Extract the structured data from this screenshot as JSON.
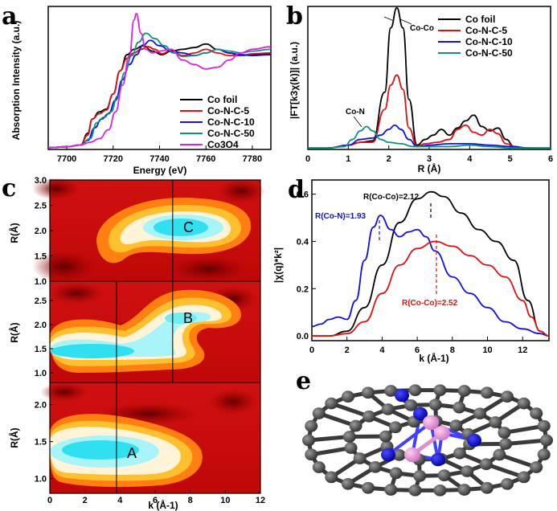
{
  "panel_labels": {
    "a": "a",
    "b": "b",
    "c": "c",
    "d": "d",
    "e": "e"
  },
  "chart_data": [
    {
      "id": "a",
      "type": "line",
      "title": "",
      "xlabel": "Energy (eV)",
      "ylabel": "Absorption Intensity (a.u.)",
      "xlim": [
        7692,
        7788
      ],
      "ylim": [
        0,
        1.6
      ],
      "xticks": [
        "7700",
        "7720",
        "7740",
        "7760",
        "7780"
      ],
      "legend": "lower-right",
      "series": [
        {
          "name": "Co foil",
          "color": "#000000",
          "x": [
            7692,
            7700,
            7706,
            7709,
            7711,
            7714,
            7717,
            7720,
            7723,
            7726,
            7729,
            7733,
            7737,
            7741,
            7745,
            7750,
            7755,
            7760,
            7765,
            7770,
            7775,
            7780,
            7788
          ],
          "values": [
            0.02,
            0.03,
            0.05,
            0.18,
            0.34,
            0.42,
            0.45,
            0.62,
            0.88,
            1.06,
            1.12,
            1.16,
            1.1,
            1.06,
            1.1,
            1.12,
            1.14,
            1.18,
            1.12,
            1.08,
            1.05,
            1.06,
            1.07
          ]
        },
        {
          "name": "Co-N-C-5",
          "color": "#e01010",
          "x": [
            7692,
            7700,
            7706,
            7709,
            7711,
            7714,
            7717,
            7720,
            7723,
            7726,
            7729,
            7732,
            7735,
            7738,
            7741,
            7745,
            7750,
            7755,
            7760,
            7765,
            7770,
            7775,
            7780,
            7788
          ],
          "values": [
            0.02,
            0.03,
            0.05,
            0.16,
            0.34,
            0.4,
            0.44,
            0.62,
            0.88,
            1.02,
            1.08,
            1.12,
            1.15,
            1.12,
            1.07,
            1.11,
            1.05,
            1.08,
            1.12,
            1.08,
            1.05,
            1.05,
            1.07,
            1.08
          ]
        },
        {
          "name": "Co-N-C-10",
          "color": "#1010e0",
          "x": [
            7692,
            7700,
            7706,
            7709,
            7712,
            7715,
            7718,
            7721,
            7724,
            7727,
            7730,
            7733,
            7736,
            7740,
            7745,
            7750,
            7755,
            7760,
            7765,
            7770,
            7775,
            7780,
            7788
          ],
          "values": [
            0.02,
            0.03,
            0.05,
            0.1,
            0.24,
            0.34,
            0.4,
            0.55,
            0.78,
            0.95,
            1.06,
            1.17,
            1.22,
            1.16,
            1.1,
            1.08,
            1.05,
            1.08,
            1.12,
            1.08,
            1.06,
            1.05,
            1.06
          ]
        },
        {
          "name": "Co-N-C-50",
          "color": "#109080",
          "x": [
            7692,
            7700,
            7706,
            7710,
            7713,
            7716,
            7719,
            7722,
            7725,
            7728,
            7731,
            7734,
            7738,
            7742,
            7746,
            7750,
            7755,
            7760,
            7765,
            7770,
            7775,
            7780,
            7788
          ],
          "values": [
            0.02,
            0.03,
            0.05,
            0.12,
            0.3,
            0.36,
            0.42,
            0.6,
            0.86,
            1.05,
            1.2,
            1.3,
            1.24,
            1.16,
            1.08,
            1.04,
            1.05,
            1.08,
            1.12,
            1.1,
            1.08,
            1.1,
            1.12
          ]
        },
        {
          "name": "Co3O4",
          "color": "#e020e0",
          "x": [
            7692,
            7700,
            7706,
            7710,
            7714,
            7718,
            7721,
            7724,
            7727,
            7729,
            7730,
            7732,
            7734,
            7737,
            7740,
            7745,
            7750,
            7755,
            7760,
            7765,
            7770,
            7775,
            7780,
            7788
          ],
          "values": [
            0.02,
            0.03,
            0.05,
            0.08,
            0.12,
            0.22,
            0.42,
            0.72,
            1.05,
            1.45,
            1.52,
            1.3,
            1.12,
            1.08,
            1.1,
            1.12,
            1.0,
            0.95,
            0.9,
            0.92,
            1.0,
            1.08,
            1.12,
            1.15
          ]
        }
      ],
      "legend_entries": [
        "Co foil",
        "Co-N-C-5",
        "Co-N-C-10",
        "Co-N-C-50",
        "Co3O4"
      ]
    },
    {
      "id": "b",
      "type": "line",
      "xlabel": "R (Å)",
      "ylabel": "|FT[k3χ(k)]| (a.u.)",
      "xlim": [
        0,
        6
      ],
      "ylim": [
        0,
        1.0
      ],
      "xticks": [
        "0",
        "1",
        "2",
        "3",
        "4",
        "5",
        "6"
      ],
      "annotations": [
        "Co-Co",
        "Co-N"
      ],
      "legend": "top-right",
      "series": [
        {
          "name": "Co foil",
          "color": "#000000",
          "x": [
            0,
            0.5,
            1.0,
            1.3,
            1.6,
            1.9,
            2.05,
            2.2,
            2.35,
            2.5,
            2.7,
            2.9,
            3.1,
            3.3,
            3.5,
            3.7,
            3.9,
            4.1,
            4.3,
            4.5,
            4.7,
            4.9,
            5.1,
            5.4,
            5.8,
            6.0
          ],
          "values": [
            0.01,
            0.01,
            0.03,
            0.05,
            0.06,
            0.4,
            0.85,
            0.99,
            0.85,
            0.35,
            0.03,
            0.07,
            0.1,
            0.14,
            0.1,
            0.15,
            0.2,
            0.24,
            0.16,
            0.13,
            0.15,
            0.07,
            0.02,
            0.01,
            0.01,
            0.01
          ]
        },
        {
          "name": "Co-N-C-5",
          "color": "#e01010",
          "x": [
            0,
            0.5,
            1.0,
            1.3,
            1.6,
            1.9,
            2.05,
            2.2,
            2.35,
            2.5,
            2.7,
            2.9,
            3.2,
            3.5,
            3.7,
            3.9,
            4.1,
            4.3,
            4.5,
            4.7,
            4.9,
            5.2,
            5.6,
            6.0
          ],
          "values": [
            0.01,
            0.01,
            0.03,
            0.05,
            0.05,
            0.28,
            0.45,
            0.52,
            0.42,
            0.15,
            0.02,
            0.04,
            0.05,
            0.07,
            0.14,
            0.17,
            0.12,
            0.1,
            0.14,
            0.11,
            0.04,
            0.01,
            0.01,
            0.01
          ]
        },
        {
          "name": "Co-N-C-10",
          "color": "#1010e0",
          "x": [
            0,
            0.5,
            1.0,
            1.3,
            1.6,
            1.8,
            2.0,
            2.15,
            2.3,
            2.5,
            2.7,
            3.0,
            3.5,
            4.0,
            4.5,
            5.0,
            5.5,
            6.0
          ],
          "values": [
            0.01,
            0.01,
            0.03,
            0.07,
            0.08,
            0.1,
            0.14,
            0.17,
            0.14,
            0.07,
            0.02,
            0.03,
            0.04,
            0.04,
            0.03,
            0.02,
            0.01,
            0.01
          ]
        },
        {
          "name": "Co-N-C-50",
          "color": "#109080",
          "x": [
            0,
            0.5,
            0.9,
            1.1,
            1.3,
            1.45,
            1.6,
            1.8,
            2.0,
            2.3,
            2.6,
            3.0,
            3.5,
            4.0,
            4.5,
            5.0,
            6.0
          ],
          "values": [
            0.01,
            0.01,
            0.02,
            0.07,
            0.13,
            0.16,
            0.13,
            0.07,
            0.05,
            0.04,
            0.02,
            0.02,
            0.02,
            0.03,
            0.02,
            0.01,
            0.01
          ]
        }
      ],
      "legend_entries": [
        "Co foil",
        "Co-N-C-5",
        "Co-N-C-10",
        "Co-N-C-50"
      ]
    },
    {
      "id": "c",
      "type": "heatmap",
      "xlabel": "k (Å-1)",
      "ylabel": "R(Å)",
      "xlim": [
        0,
        12
      ],
      "xticks": [
        "0",
        "2",
        "4",
        "6",
        "8",
        "10",
        "12"
      ],
      "subpanels": [
        {
          "label": "C",
          "ylim": [
            1.0,
            3.0
          ],
          "yticks": [
            "1.0",
            "1.5",
            "2.0",
            "2.5",
            "3.0"
          ],
          "hotspot_k": 7.0,
          "hotspot_R": 2.2,
          "marker_k": [
            7.0
          ]
        },
        {
          "label": "B",
          "ylim": [
            0.8,
            2.9
          ],
          "yticks": [
            "1.0",
            "1.5",
            "2.0",
            "2.5"
          ],
          "hotspot_k": 7.0,
          "hotspot_R": 2.1,
          "marker_k": [
            3.8,
            7.0
          ]
        },
        {
          "label": "A",
          "ylim": [
            0.8,
            2.3
          ],
          "yticks": [
            "1.0",
            "1.5",
            "2.0"
          ],
          "hotspot_k": 3.8,
          "hotspot_R": 1.4,
          "marker_k": [
            3.8
          ]
        }
      ]
    },
    {
      "id": "d",
      "type": "line",
      "xlabel": "k (Å-1)",
      "ylabel": "|χ(q)*k²|",
      "xlim": [
        0,
        13.5
      ],
      "ylim": [
        -0.02,
        0.66
      ],
      "xticks": [
        "0",
        "2",
        "4",
        "6",
        "8",
        "10",
        "12"
      ],
      "yticks": [
        "0.0",
        "0.2",
        "0.4",
        "0.6"
      ],
      "annotations": [
        "R(Co-Co)=2.12",
        "R(Co-N)=1.93",
        "R(Co-Co)=2.52"
      ],
      "series": [
        {
          "name": "Co-Co 2.12",
          "color": "#000000",
          "x": [
            0,
            1,
            2,
            3,
            4,
            5,
            6,
            6.8,
            7.5,
            8.5,
            9.5,
            10.5,
            11.5,
            12.3,
            13,
            13.5
          ],
          "values": [
            0.0,
            0.0,
            0.02,
            0.12,
            0.3,
            0.48,
            0.58,
            0.61,
            0.59,
            0.52,
            0.45,
            0.4,
            0.32,
            0.15,
            0.02,
            0.0
          ]
        },
        {
          "name": "Co-N 1.93",
          "color": "#1010e0",
          "x": [
            0,
            0.5,
            1.0,
            1.5,
            2.0,
            2.5,
            3.0,
            3.5,
            3.9,
            4.5,
            5.0,
            5.5,
            6.0,
            6.5,
            7.0,
            8.0,
            9.0,
            10.0,
            11.0,
            12.0,
            13.0,
            13.5
          ],
          "values": [
            0.04,
            0.05,
            0.07,
            0.08,
            0.07,
            0.15,
            0.32,
            0.46,
            0.51,
            0.45,
            0.42,
            0.44,
            0.45,
            0.42,
            0.36,
            0.25,
            0.18,
            0.12,
            0.06,
            0.03,
            0.01,
            0.0
          ]
        },
        {
          "name": "Co-Co 2.52",
          "color": "#e01010",
          "x": [
            0,
            1,
            2,
            3,
            4,
            5,
            6,
            7,
            8,
            9,
            10,
            11,
            12,
            12.5,
            13,
            13.5
          ],
          "values": [
            0.0,
            0.0,
            0.01,
            0.06,
            0.18,
            0.3,
            0.37,
            0.4,
            0.38,
            0.34,
            0.3,
            0.25,
            0.15,
            0.08,
            0.02,
            0.0
          ]
        }
      ]
    }
  ],
  "panel_e": {
    "description_label": "e",
    "atoms": [
      "C",
      "N",
      "Co"
    ]
  }
}
